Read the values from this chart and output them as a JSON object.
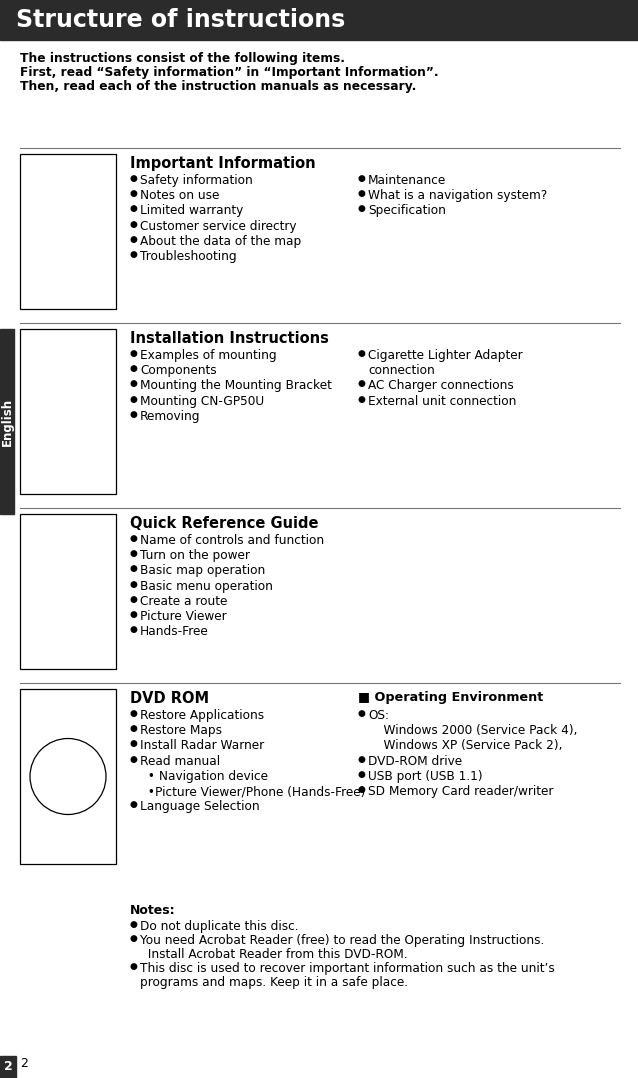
{
  "title": "Structure of instructions",
  "title_bg": "#2b2b2b",
  "title_color": "#ffffff",
  "page_bg": "#ffffff",
  "intro_lines": [
    "The instructions consist of the following items.",
    "First, read “Safety information” in “Important Information”.",
    "Then, read each of the instruction manuals as necessary."
  ],
  "sidebar_label": "English",
  "sidebar_bg": "#2b2b2b",
  "page_number": "2",
  "sections": [
    {
      "title": "Important Information",
      "col1": [
        "Safety information",
        "Notes on use",
        "Limited warranty",
        "Customer service directry",
        "About the data of the map",
        "Troubleshooting"
      ],
      "col2_title": null,
      "col2": [
        "Maintenance",
        "What is a navigation system?",
        "Specification"
      ],
      "image_circle": false
    },
    {
      "title": "Installation Instructions",
      "col1": [
        "Examples of mounting",
        "Components",
        "Mounting the Mounting Bracket",
        "Mounting CN-GP50U",
        "Removing"
      ],
      "col2_title": null,
      "col2": [
        "Cigarette Lighter Adapter\nconnection",
        "AC Charger connections",
        "External unit connection"
      ],
      "image_circle": false
    },
    {
      "title": "Quick Reference Guide",
      "col1": [
        "Name of controls and function",
        "Turn on the power",
        "Basic map operation",
        "Basic menu operation",
        "Create a route",
        "Picture Viewer",
        "Hands-Free"
      ],
      "col2_title": null,
      "col2": [],
      "image_circle": false
    },
    {
      "title": "DVD ROM",
      "col1": [
        "Restore Applications",
        "Restore Maps",
        "Install Radar Warner",
        "Read manual\n  • Navigation device\n  •Picture Viewer/Phone (Hands-Free)",
        "Language Selection"
      ],
      "col2_title": "■ Operating Environment",
      "col2": [
        "OS:\n    Windows 2000 (Service Pack 4),\n    Windows XP (Service Pack 2),",
        "DVD-ROM drive",
        "USB port (USB 1.1)",
        "SD Memory Card reader/writer"
      ],
      "image_circle": true
    }
  ],
  "notes_title": "Notes:",
  "notes": [
    "Do not duplicate this disc.",
    "You need Acrobat Reader (free) to read the Operating Instructions.\n  Install Acrobat Reader from this DVD-ROM.",
    "This disc is used to recover important information such as the unit’s\nprograms and maps. Keep it in a safe place."
  ]
}
